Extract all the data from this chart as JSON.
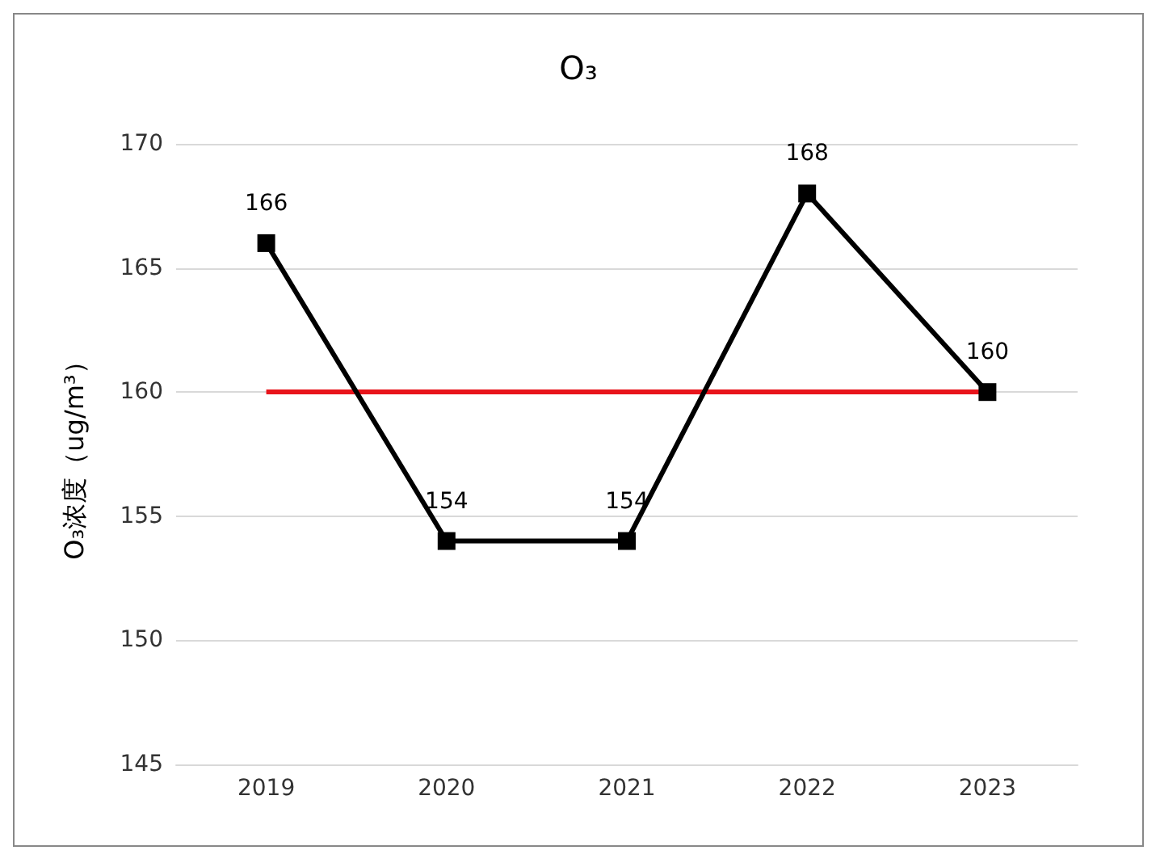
{
  "chart_data": {
    "type": "line",
    "title": "O₃",
    "ylabel": "O₃浓度（ug/m³）",
    "categories": [
      "2019",
      "2020",
      "2021",
      "2022",
      "2023"
    ],
    "series": [
      {
        "color": "#000000",
        "values": [
          166,
          154,
          154,
          168,
          160
        ]
      }
    ],
    "ylim": [
      145,
      170
    ],
    "yticks": [
      145,
      150,
      155,
      160,
      165,
      170
    ],
    "grid": "y",
    "marker": "square",
    "line_style": "solid",
    "data_labels": true,
    "ref_lines": [
      {
        "axis": "y",
        "value": 160,
        "color": "#e8141b",
        "line_style": "solid"
      }
    ]
  }
}
